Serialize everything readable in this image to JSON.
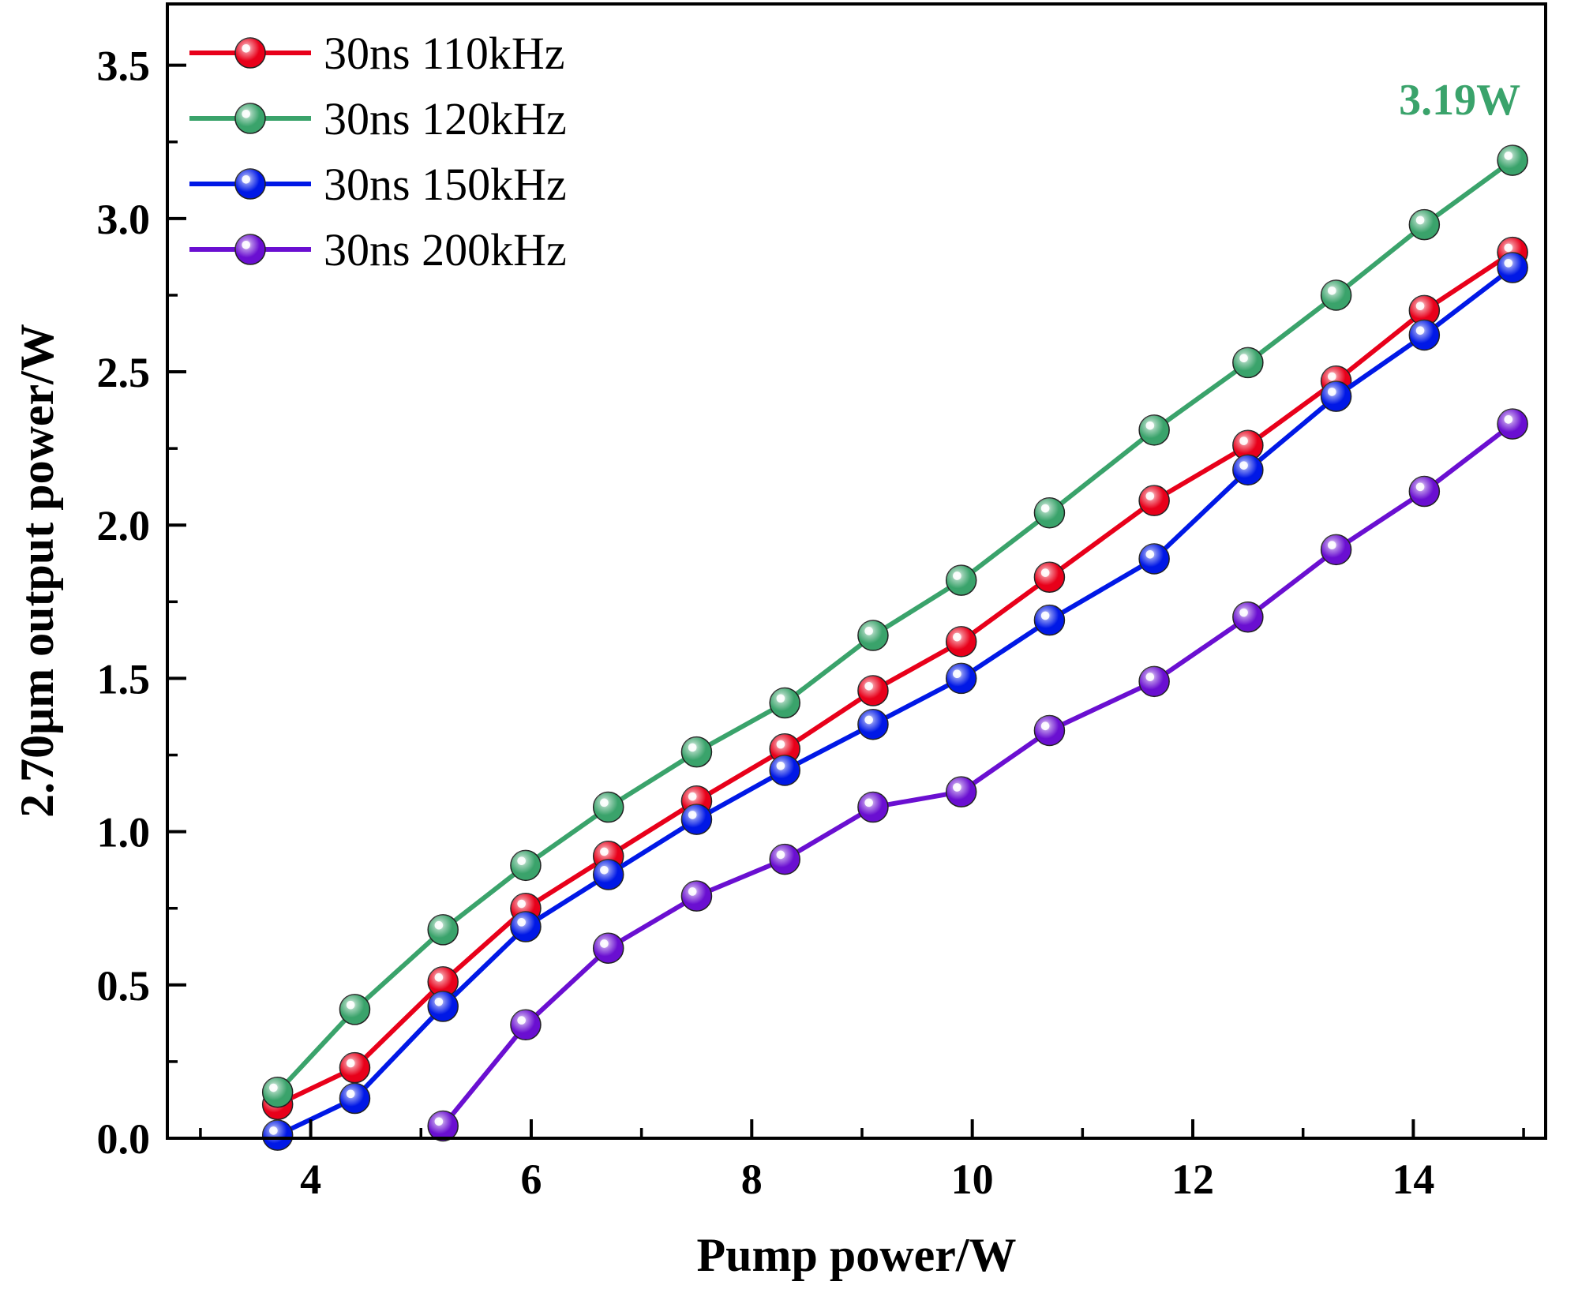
{
  "chart_data": {
    "type": "line",
    "title": "",
    "xlabel": "Pump power/W",
    "ylabel": "2.70μm output power/W",
    "xlim": [
      2.7,
      15.2
    ],
    "ylim": [
      0.0,
      3.7
    ],
    "xticks": [
      4,
      6,
      8,
      10,
      12,
      14
    ],
    "xtick_labels": [
      "4",
      "6",
      "8",
      "10",
      "12",
      "14"
    ],
    "xminor": [
      3,
      5,
      7,
      9,
      11,
      13,
      15
    ],
    "yticks": [
      0.0,
      0.5,
      1.0,
      1.5,
      2.0,
      2.5,
      3.0,
      3.5
    ],
    "ytick_labels": [
      "0.0",
      "0.5",
      "1.0",
      "1.5",
      "2.0",
      "2.5",
      "3.0",
      "3.5"
    ],
    "yminor": [
      0.25,
      0.75,
      1.25,
      1.75,
      2.25,
      2.75,
      3.25
    ],
    "grid": false,
    "legend_position": "top-left",
    "series": [
      {
        "name": "30ns 110kHz",
        "color": "#e8001a",
        "x": [
          3.7,
          4.4,
          5.2,
          5.95,
          6.7,
          7.5,
          8.3,
          9.1,
          9.9,
          10.7,
          11.65,
          12.5,
          13.3,
          14.1,
          14.9
        ],
        "values": [
          0.11,
          0.23,
          0.51,
          0.75,
          0.92,
          1.1,
          1.27,
          1.46,
          1.62,
          1.83,
          2.08,
          2.26,
          2.47,
          2.7,
          2.89
        ]
      },
      {
        "name": "30ns 120kHz",
        "color": "#3aa36b",
        "x": [
          3.7,
          4.4,
          5.2,
          5.95,
          6.7,
          7.5,
          8.3,
          9.1,
          9.9,
          10.7,
          11.65,
          12.5,
          13.3,
          14.1,
          14.9
        ],
        "values": [
          0.15,
          0.42,
          0.68,
          0.89,
          1.08,
          1.26,
          1.42,
          1.64,
          1.82,
          2.04,
          2.31,
          2.53,
          2.75,
          2.98,
          3.19
        ]
      },
      {
        "name": "30ns 150kHz",
        "color": "#0018e6",
        "x": [
          3.7,
          4.4,
          5.2,
          5.95,
          6.7,
          7.5,
          8.3,
          9.1,
          9.9,
          10.7,
          11.65,
          12.5,
          13.3,
          14.1,
          14.9
        ],
        "values": [
          0.01,
          0.13,
          0.43,
          0.69,
          0.86,
          1.04,
          1.2,
          1.35,
          1.5,
          1.69,
          1.89,
          2.18,
          2.42,
          2.62,
          2.84
        ]
      },
      {
        "name": "30ns 200kHz",
        "color": "#6a0fd1",
        "x": [
          5.2,
          5.95,
          6.7,
          7.5,
          8.3,
          9.1,
          9.9,
          10.7,
          11.65,
          12.5,
          13.3,
          14.1,
          14.9
        ],
        "values": [
          0.04,
          0.37,
          0.62,
          0.79,
          0.91,
          1.08,
          1.13,
          1.33,
          1.49,
          1.7,
          1.92,
          2.11,
          2.33
        ]
      }
    ],
    "annotations": [
      {
        "text": "3.19W",
        "color": "#3aa36b",
        "anchor_series": "30ns 120kHz"
      }
    ]
  }
}
